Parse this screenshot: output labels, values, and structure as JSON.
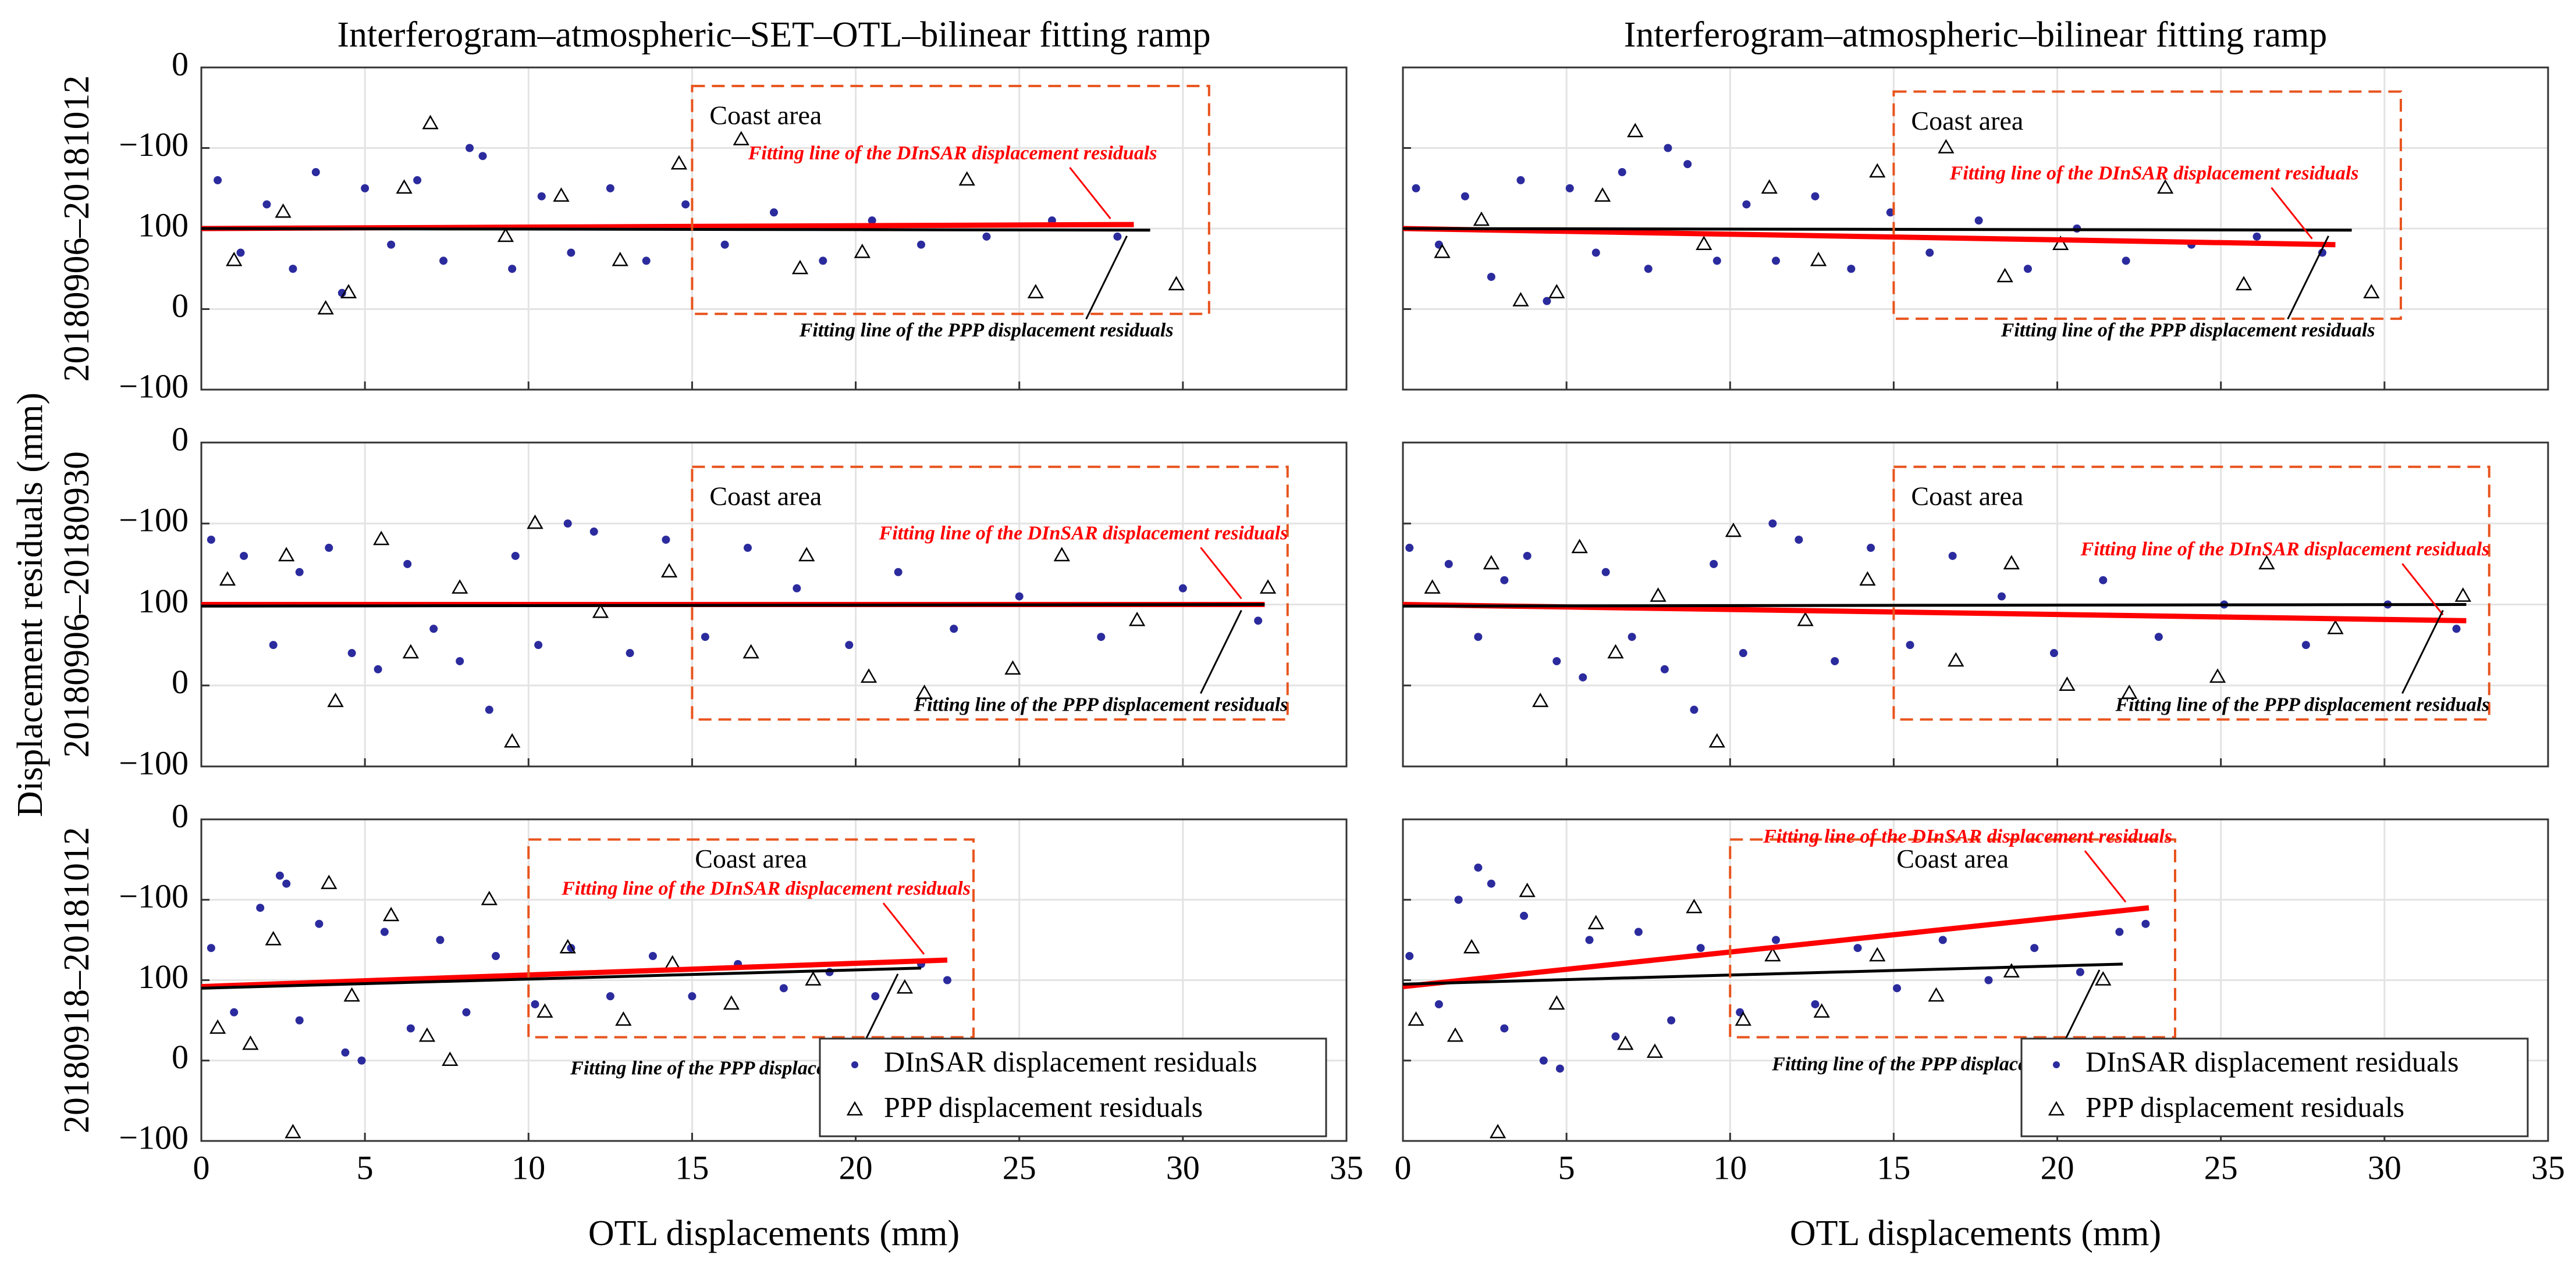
{
  "figure": {
    "ylabel": "Displacement residuals (mm)",
    "rows": [
      "20180906–20181012",
      "20180906–20180930",
      "20180918–20181012"
    ]
  },
  "chart_data": [
    {
      "type": "scatter",
      "title": "Interferogram–atmospheric–SET–OTL–bilinear fitting ramp",
      "xlim": [
        0,
        35
      ],
      "xticks": [
        0,
        5,
        10,
        15,
        20,
        25,
        30,
        35
      ],
      "ylim": [
        0,
        4
      ],
      "yticks": [
        {
          "value": 4,
          "label": "0"
        },
        {
          "value": 3,
          "label": "−100"
        },
        {
          "value": 2,
          "label": "100"
        },
        {
          "value": 1,
          "label": "0"
        },
        {
          "value": 0,
          "label": "−100"
        }
      ],
      "grid": true,
      "coast_area": {
        "label": "Coast area",
        "x": [
          15,
          30.8
        ],
        "y": [
          0.94,
          3.77
        ],
        "color": "#e8541e"
      },
      "series": [
        {
          "color": "#2b2b9e",
          "x": [
            0.5,
            1.2,
            2.0,
            2.8,
            3.5,
            4.3,
            5.0,
            5.8,
            6.6,
            7.4,
            8.2,
            8.6,
            9.5,
            10.4,
            11.3,
            12.5,
            13.6,
            14.8,
            16.0,
            17.5,
            19.0,
            20.5,
            22.0,
            24.0,
            26.0,
            28.0
          ],
          "values": [
            2.6,
            1.7,
            2.3,
            1.5,
            2.7,
            1.2,
            2.5,
            1.8,
            2.6,
            1.6,
            3.0,
            2.9,
            1.5,
            2.4,
            1.7,
            2.5,
            1.6,
            2.3,
            1.8,
            2.2,
            1.6,
            2.1,
            1.8,
            1.9,
            2.1,
            1.9
          ]
        },
        {
          "color": "#000000",
          "marker": "triangle",
          "x": [
            1,
            2.5,
            3.8,
            4.5,
            6.2,
            7,
            9.3,
            11,
            12.8,
            14.6,
            16.5,
            18.3,
            20.2,
            23.4,
            25.5,
            29.8
          ],
          "values": [
            1.6,
            2.2,
            1.0,
            1.2,
            2.5,
            3.3,
            1.9,
            2.4,
            1.6,
            2.8,
            3.1,
            1.5,
            1.7,
            2.6,
            1.2,
            1.3
          ]
        }
      ],
      "fit_lines": [
        {
          "label": "Fitting line of the DInSAR displacement residuals",
          "color": "#ff0000",
          "x": [
            0,
            28.5
          ],
          "values": [
            2.0,
            2.05
          ]
        },
        {
          "label": "Fitting line of the PPP displacement residuals",
          "color": "#000000",
          "x": [
            0,
            29
          ],
          "values": [
            2.0,
            1.98
          ]
        }
      ]
    },
    {
      "type": "scatter",
      "title": "Interferogram–atmospheric–bilinear fitting ramp",
      "xlim": [
        0,
        35
      ],
      "xticks": [
        0,
        5,
        10,
        15,
        20,
        25,
        30,
        35
      ],
      "ylim": [
        0,
        4
      ],
      "yticks": [
        4,
        3,
        2,
        1,
        0
      ],
      "grid": true,
      "coast_area": {
        "label": "Coast area",
        "x": [
          15,
          30.5
        ],
        "y": [
          0.88,
          3.7
        ],
        "color": "#e8541e"
      },
      "series": [
        {
          "color": "#2b2b9e",
          "x": [
            0.4,
            1.1,
            1.9,
            2.7,
            3.6,
            4.4,
            5.1,
            5.9,
            6.7,
            7.5,
            8.1,
            8.7,
            9.6,
            10.5,
            11.4,
            12.6,
            13.7,
            14.9,
            16.1,
            17.6,
            19.1,
            20.6,
            22.1,
            24.1,
            26.1,
            28.1
          ],
          "values": [
            2.5,
            1.8,
            2.4,
            1.4,
            2.6,
            1.1,
            2.5,
            1.7,
            2.7,
            1.5,
            3.0,
            2.8,
            1.6,
            2.3,
            1.6,
            2.4,
            1.5,
            2.2,
            1.7,
            2.1,
            1.5,
            2.0,
            1.6,
            1.8,
            1.9,
            1.7
          ]
        },
        {
          "color": "#000000",
          "marker": "triangle",
          "x": [
            1.2,
            2.4,
            3.6,
            4.7,
            6.1,
            7.1,
            9.2,
            11.2,
            12.7,
            14.5,
            16.6,
            18.4,
            20.1,
            23.3,
            25.7,
            29.6
          ],
          "values": [
            1.7,
            2.1,
            1.1,
            1.2,
            2.4,
            3.2,
            1.8,
            2.5,
            1.6,
            2.7,
            3.0,
            1.4,
            1.8,
            2.5,
            1.3,
            1.2
          ]
        }
      ],
      "fit_lines": [
        {
          "label": "Fitting line of the DInSAR displacement residuals",
          "color": "#ff0000",
          "x": [
            0,
            28.5
          ],
          "values": [
            2.0,
            1.8
          ]
        },
        {
          "label": "Fitting line of the PPP displacement residuals",
          "color": "#000000",
          "x": [
            0,
            29
          ],
          "values": [
            2.0,
            1.98
          ]
        }
      ]
    },
    {
      "type": "scatter",
      "xlim": [
        0,
        35
      ],
      "xticks": [
        0,
        5,
        10,
        15,
        20,
        25,
        30,
        35
      ],
      "ylim": [
        0,
        4
      ],
      "yticks": [
        {
          "value": 4,
          "label": "0"
        },
        {
          "value": 3,
          "label": "−100"
        },
        {
          "value": 2,
          "label": "100"
        },
        {
          "value": 1,
          "label": "0"
        },
        {
          "value": 0,
          "label": "−100"
        }
      ],
      "grid": true,
      "coast_area": {
        "label": "Coast area",
        "x": [
          15,
          33.2
        ],
        "y": [
          0.58,
          3.7
        ],
        "color": "#e8541e"
      },
      "series": [
        {
          "color": "#2b2b9e",
          "x": [
            0.3,
            1.3,
            2.2,
            3.0,
            3.9,
            4.6,
            5.4,
            6.3,
            7.1,
            7.9,
            8.8,
            9.6,
            10.3,
            11.2,
            12.0,
            13.1,
            14.2,
            15.4,
            16.7,
            18.2,
            19.8,
            21.3,
            23.0,
            25.0,
            27.5,
            30.0,
            32.3
          ],
          "values": [
            2.8,
            2.6,
            1.5,
            2.4,
            2.7,
            1.4,
            1.2,
            2.5,
            1.7,
            1.3,
            0.7,
            2.6,
            1.5,
            3.0,
            2.9,
            1.4,
            2.8,
            1.6,
            2.7,
            2.2,
            1.5,
            2.4,
            1.7,
            2.1,
            1.6,
            2.2,
            1.8
          ]
        },
        {
          "color": "#000000",
          "marker": "triangle",
          "x": [
            0.8,
            2.6,
            4.1,
            5.5,
            6.4,
            7.9,
            9.5,
            10.2,
            12.2,
            14.3,
            16.8,
            18.5,
            20.4,
            22.1,
            24.8,
            26.3,
            28.6,
            32.6
          ],
          "values": [
            2.3,
            2.6,
            0.8,
            2.8,
            1.4,
            2.2,
            0.3,
            3.0,
            1.9,
            2.4,
            1.4,
            2.6,
            1.1,
            0.9,
            1.2,
            2.6,
            1.8,
            2.2
          ]
        }
      ],
      "fit_lines": [
        {
          "label": "Fitting line of the DInSAR displacement residuals",
          "color": "#ff0000",
          "x": [
            0,
            32.5
          ],
          "values": [
            2.0,
            2.0
          ]
        },
        {
          "label": "Fitting line of the PPP displacement residuals",
          "color": "#000000",
          "x": [
            0,
            32.5
          ],
          "values": [
            1.98,
            2.0
          ]
        }
      ]
    },
    {
      "type": "scatter",
      "xlim": [
        0,
        35
      ],
      "xticks": [
        0,
        5,
        10,
        15,
        20,
        25,
        30,
        35
      ],
      "ylim": [
        0,
        4
      ],
      "yticks": [
        4,
        3,
        2,
        1,
        0
      ],
      "grid": true,
      "coast_area": {
        "label": "Coast area",
        "x": [
          15,
          33.2
        ],
        "y": [
          0.58,
          3.7
        ],
        "color": "#e8541e"
      },
      "series": [
        {
          "color": "#2b2b9e",
          "x": [
            0.2,
            1.4,
            2.3,
            3.1,
            3.8,
            4.7,
            5.5,
            6.2,
            7.0,
            8.0,
            8.9,
            9.5,
            10.4,
            11.3,
            12.1,
            13.2,
            14.3,
            15.5,
            16.8,
            18.3,
            19.9,
            21.4,
            23.1,
            25.1,
            27.6,
            30.1,
            32.2
          ],
          "values": [
            2.7,
            2.5,
            1.6,
            2.3,
            2.6,
            1.3,
            1.1,
            2.4,
            1.6,
            1.2,
            0.7,
            2.5,
            1.4,
            3.0,
            2.8,
            1.3,
            2.7,
            1.5,
            2.6,
            2.1,
            1.4,
            2.3,
            1.6,
            2.0,
            1.5,
            2.0,
            1.7
          ]
        },
        {
          "color": "#000000",
          "marker": "triangle",
          "x": [
            0.9,
            2.7,
            4.2,
            5.4,
            6.5,
            7.8,
            9.6,
            10.1,
            12.3,
            14.2,
            16.9,
            18.6,
            20.3,
            22.2,
            24.9,
            26.4,
            28.5,
            32.4
          ],
          "values": [
            2.2,
            2.5,
            0.8,
            2.7,
            1.4,
            2.1,
            0.3,
            2.9,
            1.8,
            2.3,
            1.3,
            2.5,
            1.0,
            0.9,
            1.1,
            2.5,
            1.7,
            2.1
          ]
        }
      ],
      "fit_lines": [
        {
          "label": "Fitting line of the DInSAR displacement residuals",
          "color": "#ff0000",
          "x": [
            0,
            32.5
          ],
          "values": [
            2.0,
            1.8
          ]
        },
        {
          "label": "Fitting line of the PPP displacement residuals",
          "color": "#000000",
          "x": [
            0,
            32.5
          ],
          "values": [
            1.98,
            2.0
          ]
        }
      ]
    },
    {
      "type": "scatter",
      "xlabel": "OTL displacements (mm)",
      "xlim": [
        0,
        35
      ],
      "xticks": [
        0,
        5,
        10,
        15,
        20,
        25,
        30,
        35
      ],
      "ylim": [
        0,
        4
      ],
      "yticks": [
        {
          "value": 4,
          "label": "0"
        },
        {
          "value": 3,
          "label": "−100"
        },
        {
          "value": 2,
          "label": "100"
        },
        {
          "value": 1,
          "label": "0"
        },
        {
          "value": 0,
          "label": "−100"
        }
      ],
      "grid": true,
      "coast_area": {
        "label": "Coast area",
        "x": [
          10,
          23.6
        ],
        "y": [
          1.29,
          3.75
        ],
        "color": "#e8541e"
      },
      "legend": "lower right",
      "series": [
        {
          "name": "DInSAR displacement residuals",
          "color": "#2b2b9e",
          "x": [
            0.3,
            1.0,
            1.8,
            2.4,
            2.6,
            3.0,
            3.6,
            4.4,
            4.9,
            5.6,
            6.4,
            7.3,
            8.1,
            9.0,
            10.2,
            11.3,
            12.5,
            13.8,
            15.0,
            16.4,
            17.8,
            19.2,
            20.6,
            22.0,
            22.8
          ],
          "values": [
            2.4,
            1.6,
            2.9,
            3.3,
            3.2,
            1.5,
            2.7,
            1.1,
            1.0,
            2.6,
            1.4,
            2.5,
            1.6,
            2.3,
            1.7,
            2.4,
            1.8,
            2.3,
            1.8,
            2.2,
            1.9,
            2.1,
            1.8,
            2.2,
            2.0
          ]
        },
        {
          "name": "PPP displacement residuals",
          "color": "#000000",
          "marker": "triangle",
          "x": [
            0.5,
            1.5,
            2.2,
            2.8,
            3.9,
            4.6,
            5.8,
            6.9,
            7.6,
            8.8,
            10.5,
            11.2,
            12.9,
            14.4,
            16.2,
            18.7,
            21.5
          ],
          "values": [
            1.4,
            1.2,
            2.5,
            0.1,
            3.2,
            1.8,
            2.8,
            1.3,
            1.0,
            3.0,
            1.6,
            2.4,
            1.5,
            2.2,
            1.7,
            2.0,
            1.9
          ]
        }
      ],
      "fit_lines": [
        {
          "label": "Fitting line of the DInSAR displacement residuals",
          "color": "#ff0000",
          "x": [
            0,
            22.8
          ],
          "values": [
            1.92,
            2.25
          ]
        },
        {
          "label": "Fitting line of the PPP displacement residuals",
          "color": "#000000",
          "x": [
            0,
            22
          ],
          "values": [
            1.9,
            2.15
          ]
        }
      ]
    },
    {
      "type": "scatter",
      "xlabel": "OTL displacements (mm)",
      "xlim": [
        0,
        35
      ],
      "xticks": [
        0,
        5,
        10,
        15,
        20,
        25,
        30,
        35
      ],
      "ylim": [
        0,
        4
      ],
      "yticks": [
        4,
        3,
        2,
        1,
        0
      ],
      "grid": true,
      "coast_area": {
        "label": "Coast area",
        "x": [
          10,
          23.6
        ],
        "y": [
          1.29,
          3.75
        ],
        "color": "#e8541e"
      },
      "legend": "lower right",
      "series": [
        {
          "name": "DInSAR displacement residuals",
          "color": "#2b2b9e",
          "x": [
            0.2,
            1.1,
            1.7,
            2.3,
            2.7,
            3.1,
            3.7,
            4.3,
            4.8,
            5.7,
            6.5,
            7.2,
            8.2,
            9.1,
            10.3,
            11.4,
            12.6,
            13.9,
            15.1,
            16.5,
            17.9,
            19.3,
            20.7,
            21.9,
            22.7
          ],
          "values": [
            2.3,
            1.7,
            3.0,
            3.4,
            3.2,
            1.4,
            2.8,
            1.0,
            0.9,
            2.5,
            1.3,
            2.6,
            1.5,
            2.4,
            1.6,
            2.5,
            1.7,
            2.4,
            1.9,
            2.5,
            2.0,
            2.4,
            2.1,
            2.6,
            2.7
          ]
        },
        {
          "name": "PPP displacement residuals",
          "color": "#000000",
          "marker": "triangle",
          "x": [
            0.4,
            1.6,
            2.1,
            2.9,
            3.8,
            4.7,
            5.9,
            6.8,
            7.7,
            8.9,
            10.4,
            11.3,
            12.8,
            14.5,
            16.3,
            18.6,
            21.4
          ],
          "values": [
            1.5,
            1.3,
            2.4,
            0.1,
            3.1,
            1.7,
            2.7,
            1.2,
            1.1,
            2.9,
            1.5,
            2.3,
            1.6,
            2.3,
            1.8,
            2.1,
            2.0
          ]
        }
      ],
      "fit_lines": [
        {
          "label": "Fitting line of the DInSAR displacement residuals",
          "color": "#ff0000",
          "x": [
            0,
            22.8
          ],
          "values": [
            1.92,
            2.9
          ]
        },
        {
          "label": "Fitting line of the PPP displacement residuals",
          "color": "#000000",
          "x": [
            0,
            22
          ],
          "values": [
            1.95,
            2.2
          ]
        }
      ]
    }
  ]
}
